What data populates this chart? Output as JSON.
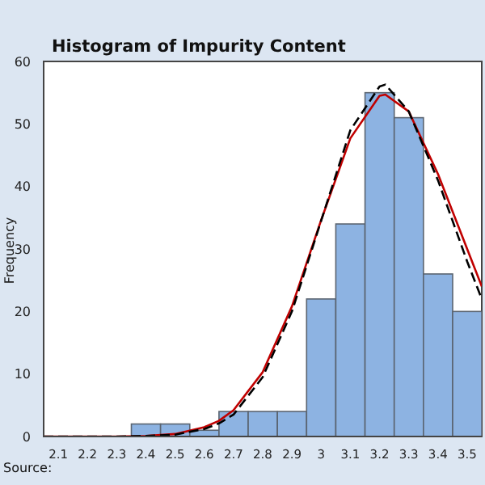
{
  "chart_data": {
    "type": "histogram",
    "title": "Histogram of Impurity Content",
    "ylabel": "Frequency",
    "annotations": [
      "Source:"
    ],
    "bins": [
      2.05,
      2.15,
      2.25,
      2.35,
      2.45,
      2.55,
      2.65,
      2.75,
      2.85,
      2.95,
      3.05,
      3.15,
      3.25,
      3.35,
      3.45,
      3.55
    ],
    "values": [
      0,
      0,
      0,
      2,
      2,
      1,
      4,
      4,
      4,
      22,
      34,
      55,
      51,
      26,
      20
    ],
    "color": "#8db3e2",
    "series": [
      {
        "type": "line",
        "color": "#c00000",
        "line_style": "solid",
        "x": [
          2.05,
          2.2,
          2.3,
          2.4,
          2.5,
          2.6,
          2.65,
          2.7,
          2.8,
          2.9,
          3.0,
          3.1,
          3.2,
          3.22,
          3.3,
          3.4,
          3.5,
          3.55
        ],
        "values": [
          0,
          0,
          0,
          0.1,
          0.4,
          1.5,
          2.5,
          4.2,
          10.3,
          20.8,
          34.6,
          47.7,
          54.5,
          54.7,
          52,
          42,
          30,
          24
        ]
      },
      {
        "type": "line",
        "color": "#000000",
        "line_style": "dashed",
        "x": [
          2.05,
          2.2,
          2.3,
          2.4,
          2.5,
          2.6,
          2.65,
          2.7,
          2.8,
          2.9,
          3.0,
          3.1,
          3.2,
          3.22,
          3.3,
          3.4,
          3.5,
          3.55
        ],
        "values": [
          0,
          0,
          0,
          0.1,
          0.3,
          1.2,
          2.1,
          3.5,
          9.5,
          20,
          34.5,
          49,
          56,
          56.3,
          52,
          41,
          28,
          22
        ]
      }
    ],
    "marker": "none",
    "grid": false,
    "legend": false,
    "xlim": [
      2.05,
      3.55
    ],
    "xticks": [
      2.1,
      2.2,
      2.3,
      2.4,
      2.5,
      2.6,
      2.7,
      2.8,
      2.9,
      3,
      3.1,
      3.2,
      3.3,
      3.4,
      3.5
    ],
    "ylim": [
      0,
      60
    ],
    "yticks": [
      0,
      10,
      20,
      30,
      40,
      50,
      60
    ]
  }
}
